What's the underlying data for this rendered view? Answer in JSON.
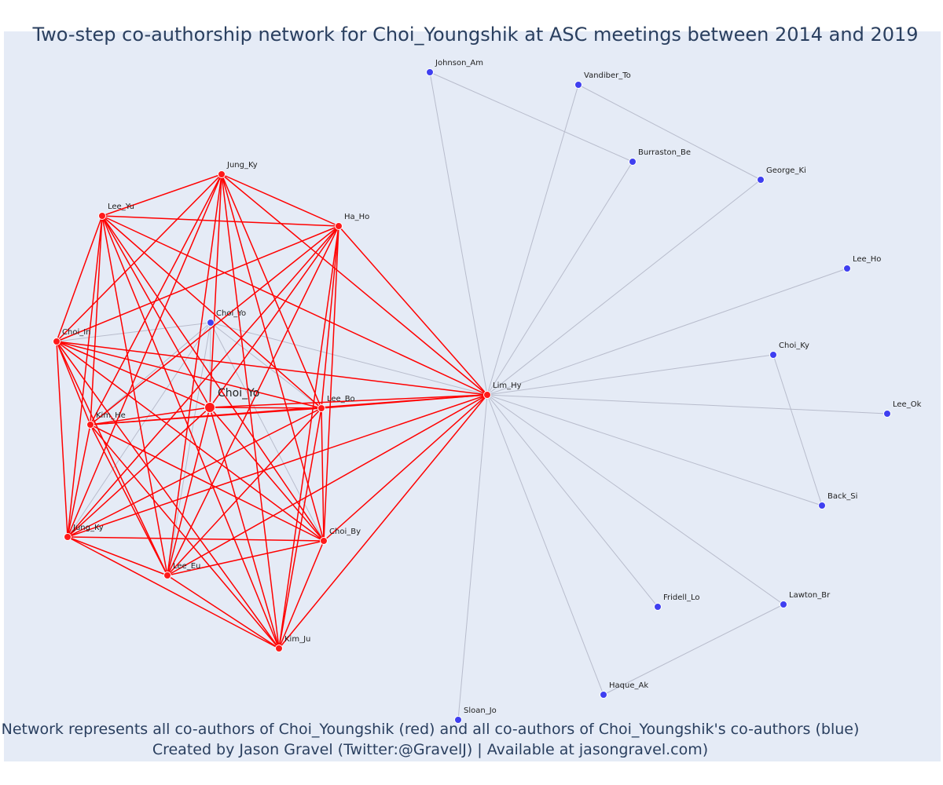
{
  "title": "Two-step co-authorship network for Choi_Youngshik at ASC meetings between 2014 and 2019",
  "caption_line1": "Network represents all co-authors of Choi_Youngshik (red) and all co-authors of Choi_Youngshik's co-authors (blue)",
  "caption_line2": "Created by Jason Gravel (Twitter:@GravelJ) | Available at jasongravel.com)",
  "colors": {
    "coauthor": "#ff1a1a",
    "second_step": "#3f3ff0",
    "coauthor_edge": "#ff0000",
    "second_edge": "#b8bccc",
    "background": "#e5ebf6"
  },
  "nodes": [
    {
      "id": "center",
      "label": "Choi_Yo",
      "group": "center"
    },
    {
      "id": "jung_ky_top",
      "label": "Jung_Ky",
      "group": "coauthor"
    },
    {
      "id": "lee_yu",
      "label": "Lee_Yu",
      "group": "coauthor"
    },
    {
      "id": "ha_ho",
      "label": "Ha_Ho",
      "group": "coauthor"
    },
    {
      "id": "choi_in",
      "label": "Choi_In",
      "group": "coauthor"
    },
    {
      "id": "kim_he",
      "label": "Kim_He",
      "group": "coauthor"
    },
    {
      "id": "lee_bo",
      "label": "Lee_Bo",
      "group": "coauthor"
    },
    {
      "id": "jung_ky_bottom",
      "label": "Jung_Ky",
      "group": "coauthor"
    },
    {
      "id": "choi_by",
      "label": "Choi_By",
      "group": "coauthor"
    },
    {
      "id": "lee_eu",
      "label": "Lee_Eu",
      "group": "coauthor"
    },
    {
      "id": "kim_ju",
      "label": "Kim_Ju",
      "group": "coauthor"
    },
    {
      "id": "lim_hy",
      "label": "Lim_Hy",
      "group": "coauthor"
    },
    {
      "id": "choi_yo_blue",
      "label": "Choi_Yo",
      "group": "second"
    },
    {
      "id": "johnson_am",
      "label": "Johnson_Am",
      "group": "second"
    },
    {
      "id": "vandiber_to",
      "label": "Vandiber_To",
      "group": "second"
    },
    {
      "id": "burraston_be",
      "label": "Burraston_Be",
      "group": "second"
    },
    {
      "id": "george_ki",
      "label": "George_Ki",
      "group": "second"
    },
    {
      "id": "lee_ho",
      "label": "Lee_Ho",
      "group": "second"
    },
    {
      "id": "choi_ky",
      "label": "Choi_Ky",
      "group": "second"
    },
    {
      "id": "lee_ok",
      "label": "Lee_Ok",
      "group": "second"
    },
    {
      "id": "back_si",
      "label": "Back_Si",
      "group": "second"
    },
    {
      "id": "lawton_br",
      "label": "Lawton_Br",
      "group": "second"
    },
    {
      "id": "fridell_lo",
      "label": "Fridell_Lo",
      "group": "second"
    },
    {
      "id": "haque_ak",
      "label": "Haque_Ak",
      "group": "second"
    },
    {
      "id": "sloan_jo",
      "label": "Sloan_Jo",
      "group": "second"
    }
  ],
  "red_group": [
    "center",
    "jung_ky_top",
    "lee_yu",
    "ha_ho",
    "choi_in",
    "kim_he",
    "lee_bo",
    "jung_ky_bottom",
    "choi_by",
    "lee_eu",
    "kim_ju",
    "lim_hy"
  ],
  "gray_edges": [
    [
      "choi_yo_blue",
      "choi_in"
    ],
    [
      "choi_yo_blue",
      "kim_he"
    ],
    [
      "choi_yo_blue",
      "jung_ky_bottom"
    ],
    [
      "choi_yo_blue",
      "lee_eu"
    ],
    [
      "choi_yo_blue",
      "center"
    ],
    [
      "choi_yo_blue",
      "lee_bo"
    ],
    [
      "choi_yo_blue",
      "choi_by"
    ],
    [
      "choi_yo_blue",
      "lim_hy"
    ],
    [
      "choi_in",
      "lim_hy"
    ],
    [
      "lim_hy",
      "johnson_am"
    ],
    [
      "lim_hy",
      "vandiber_to"
    ],
    [
      "lim_hy",
      "burraston_be"
    ],
    [
      "lim_hy",
      "george_ki"
    ],
    [
      "lim_hy",
      "lee_ho"
    ],
    [
      "lim_hy",
      "choi_ky"
    ],
    [
      "lim_hy",
      "lee_ok"
    ],
    [
      "lim_hy",
      "back_si"
    ],
    [
      "lim_hy",
      "lawton_br"
    ],
    [
      "lim_hy",
      "fridell_lo"
    ],
    [
      "lim_hy",
      "haque_ak"
    ],
    [
      "lim_hy",
      "sloan_jo"
    ],
    [
      "johnson_am",
      "burraston_be"
    ],
    [
      "vandiber_to",
      "george_ki"
    ],
    [
      "choi_ky",
      "back_si"
    ],
    [
      "lawton_br",
      "haque_ak"
    ]
  ]
}
